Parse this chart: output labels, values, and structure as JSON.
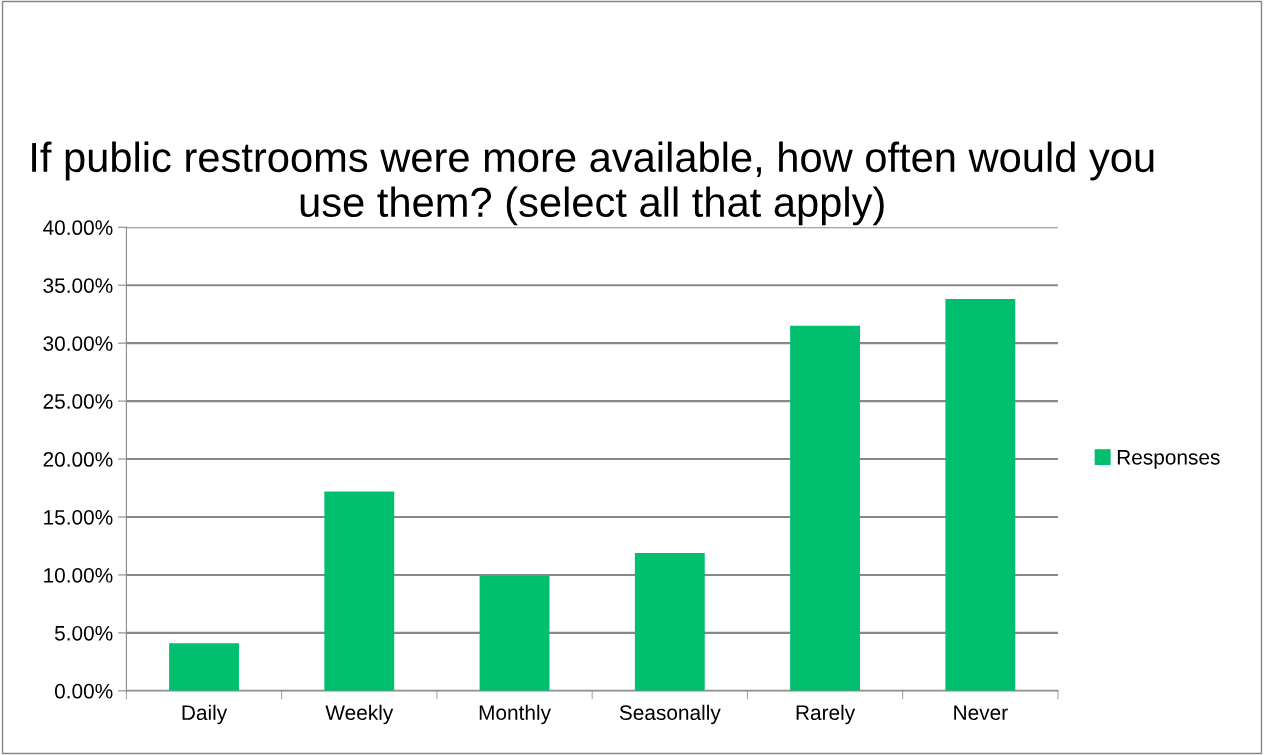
{
  "chart_data": {
    "type": "bar",
    "title": "If public restrooms were more available, how often would you use them? (select all that apply)",
    "categories": [
      "Daily",
      "Weekly",
      "Monthly",
      "Seasonally",
      "Rarely",
      "Never"
    ],
    "series": [
      {
        "name": "Responses",
        "color": "#00c070",
        "values": [
          4.1,
          17.2,
          9.9,
          11.9,
          31.5,
          33.8
        ]
      }
    ],
    "ylim": [
      0,
      40
    ],
    "yticks": [
      {
        "value": 0,
        "label": "0.00%"
      },
      {
        "value": 5,
        "label": "5.00%"
      },
      {
        "value": 10,
        "label": "10.00%"
      },
      {
        "value": 15,
        "label": "15.00%"
      },
      {
        "value": 20,
        "label": "20.00%"
      },
      {
        "value": 25,
        "label": "25.00%"
      },
      {
        "value": 30,
        "label": "30.00%"
      },
      {
        "value": 35,
        "label": "35.00%"
      },
      {
        "value": 40,
        "label": "40.00%"
      }
    ],
    "grid": "y",
    "legend": "right"
  }
}
